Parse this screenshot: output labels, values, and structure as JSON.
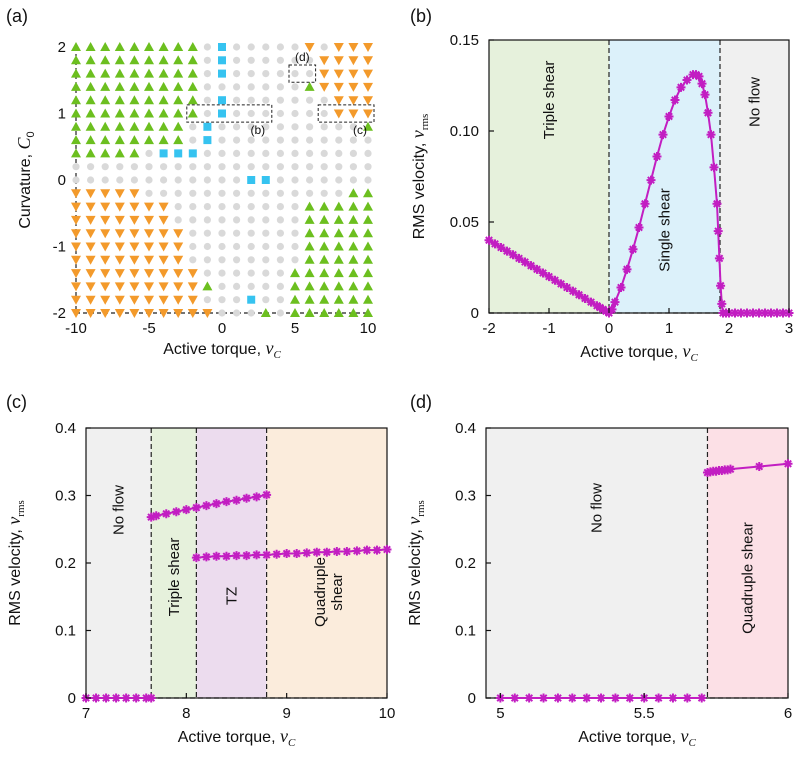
{
  "colors": {
    "green": "#6cbf1f",
    "orange": "#f39a2b",
    "cyan": "#36c3f0",
    "grey": "#d9d9d9",
    "magenta": "#c21ec2",
    "region_triple": "#e6f1dc",
    "region_single": "#dcf1fa",
    "region_noflow": "#f0f0f0",
    "region_tz": "#ecdcee",
    "region_quad_c": "#fbecdc",
    "region_quad_d": "#fce0e6"
  },
  "panel_labels": {
    "a": "(a)",
    "b": "(b)",
    "c": "(c)",
    "d": "(d)"
  },
  "icons": {
    "green": "triangle-up-icon",
    "orange": "triangle-down-icon",
    "cyan": "square-icon",
    "grey": "circle-icon"
  },
  "chart_data": [
    {
      "id": "a",
      "type": "scatter",
      "xlabel": "Active torque, ν_C",
      "ylabel": "Curvature, C₀",
      "xlim": [
        -10,
        10
      ],
      "ylim": [
        -2,
        2
      ],
      "xticks": [
        "-10",
        "-5",
        "0",
        "5",
        "10"
      ],
      "yticks": [
        "-2",
        "-1",
        "0",
        "1",
        "2"
      ],
      "grid": {
        "nx": 21,
        "ny": 21,
        "x0": -10,
        "dx": 1,
        "y0": -2,
        "dy": 0.2
      },
      "categories": [
        "green triangle-up",
        "orange triangle-down",
        "cyan square",
        "grey circle"
      ],
      "grid_rows_top_to_bottom": [
        "GGGGGGGGG.C.....O.OOO",
        "GGGGGGGGG.C......OOOO",
        "GGGGGGGGG.C......OOOO",
        "GGGGGGGGG.......GOOOO",
        "GGGGGGGGG.C.......OOO",
        "GGGGGGGGG.C.......OOO",
        "GGGGGGGG.C..........G",
        "GGGGGGGG.C...........",
        "GGGGG.CCC............",
        ".....................",
        "............CC.......",
        "OOOOO..............GG",
        "OOOOOOO.........GGGGG",
        "OOOOOOO.........GGGGG",
        "OOOOOOOO........GGGGG",
        "OOOOOOOO........GGGGG",
        "OOOOOOOO........GGGGG",
        "OOOOOOOOO......GGGGGG",
        "OOOOOOOOOG.....GGGGGG",
        "OOOOOOOOO...C..GGGGGG",
        "OOOOOOOOOO...G.GGGGGG"
      ],
      "insets": [
        {
          "label": "(b)",
          "x": [
            -2,
            3
          ],
          "y": [
            0.9,
            1.1
          ]
        },
        {
          "label": "(c)",
          "x": [
            7,
            10
          ],
          "y": [
            0.9,
            1.1
          ]
        },
        {
          "label": "(d)",
          "x": [
            5,
            6
          ],
          "y": [
            1.5,
            1.7
          ]
        }
      ]
    },
    {
      "id": "b",
      "type": "line",
      "xlabel": "Active torque, ν_C",
      "ylabel": "RMS velocity, v_rms",
      "xlim": [
        -2,
        3
      ],
      "ylim": [
        0,
        0.15
      ],
      "xticks": [
        "-2",
        "-1",
        "0",
        "1",
        "2",
        "3"
      ],
      "yticks": [
        "0",
        "0.05",
        "0.10",
        "0.15"
      ],
      "regions": [
        {
          "label": "Triple shear",
          "from": -2,
          "to": 0,
          "color": "region_triple"
        },
        {
          "label": "Single shear",
          "from": 0,
          "to": 1.85,
          "color": "region_single"
        },
        {
          "label": "No flow",
          "from": 1.85,
          "to": 3,
          "color": "region_noflow"
        }
      ],
      "series": [
        {
          "x": [
            -2,
            -1.9,
            -1.8,
            -1.7,
            -1.6,
            -1.5,
            -1.4,
            -1.3,
            -1.2,
            -1.1,
            -1.0,
            -0.9,
            -0.8,
            -0.7,
            -0.6,
            -0.5,
            -0.4,
            -0.3,
            -0.2,
            -0.15,
            -0.1,
            -0.05,
            0,
            0.05,
            0.1,
            0.2,
            0.3,
            0.4,
            0.5,
            0.6,
            0.7,
            0.8,
            0.9,
            1.0,
            1.1,
            1.2,
            1.3,
            1.4,
            1.45,
            1.5,
            1.55,
            1.6,
            1.65,
            1.7,
            1.75,
            1.8,
            1.82,
            1.84,
            1.86,
            1.88,
            1.9,
            1.95,
            2.0,
            2.1,
            2.2,
            2.3,
            2.4,
            2.5,
            2.6,
            2.7,
            2.8,
            2.9,
            3.0
          ],
          "y": [
            0.04,
            0.038,
            0.036,
            0.034,
            0.032,
            0.03,
            0.028,
            0.026,
            0.024,
            0.022,
            0.02,
            0.018,
            0.016,
            0.014,
            0.012,
            0.01,
            0.008,
            0.006,
            0.004,
            0.003,
            0.002,
            0.001,
            0,
            0.002,
            0.006,
            0.014,
            0.024,
            0.035,
            0.047,
            0.06,
            0.073,
            0.086,
            0.098,
            0.108,
            0.117,
            0.124,
            0.128,
            0.131,
            0.131,
            0.13,
            0.126,
            0.12,
            0.11,
            0.098,
            0.08,
            0.06,
            0.045,
            0.03,
            0.015,
            0.005,
            0,
            0,
            0,
            0,
            0,
            0,
            0,
            0,
            0,
            0,
            0,
            0,
            0
          ]
        }
      ]
    },
    {
      "id": "c",
      "type": "line",
      "xlabel": "Active torque, ν_C",
      "ylabel": "RMS velocity, v_rms",
      "xlim": [
        7,
        10
      ],
      "ylim": [
        0,
        0.4
      ],
      "xticks": [
        "7",
        "8",
        "9",
        "10"
      ],
      "yticks": [
        "0",
        "0.1",
        "0.2",
        "0.3",
        "0.4"
      ],
      "regions": [
        {
          "label": "No flow",
          "from": 7,
          "to": 7.65,
          "color": "region_noflow"
        },
        {
          "label": "Triple shear",
          "from": 7.65,
          "to": 8.1,
          "color": "region_triple"
        },
        {
          "label": "TZ",
          "from": 8.1,
          "to": 8.8,
          "color": "region_tz"
        },
        {
          "label": "Quadruple shear",
          "from": 8.8,
          "to": 10,
          "color": "region_quad_c"
        }
      ],
      "series": [
        {
          "x": [
            7.0,
            7.1,
            7.2,
            7.3,
            7.4,
            7.5,
            7.6,
            7.65
          ],
          "y": [
            0,
            0,
            0,
            0,
            0,
            0,
            0,
            0
          ]
        },
        {
          "x": [
            7.65,
            7.7,
            7.8,
            7.9,
            8.0,
            8.1,
            8.2,
            8.3,
            8.4,
            8.5,
            8.6,
            8.7,
            8.8
          ],
          "y": [
            0.268,
            0.27,
            0.273,
            0.276,
            0.279,
            0.282,
            0.285,
            0.288,
            0.291,
            0.293,
            0.296,
            0.298,
            0.301
          ]
        },
        {
          "x": [
            8.1,
            8.2,
            8.3,
            8.4,
            8.5,
            8.6,
            8.7,
            8.8,
            8.9,
            9.0,
            9.1,
            9.2,
            9.3,
            9.4,
            9.5,
            9.6,
            9.7,
            9.8,
            9.9,
            10.0
          ],
          "y": [
            0.208,
            0.209,
            0.21,
            0.21,
            0.211,
            0.211,
            0.212,
            0.212,
            0.213,
            0.214,
            0.214,
            0.215,
            0.216,
            0.216,
            0.217,
            0.217,
            0.218,
            0.219,
            0.219,
            0.22
          ]
        }
      ]
    },
    {
      "id": "d",
      "type": "line",
      "xlabel": "Active torque, ν_C",
      "ylabel": "RMS velocity, v_rms",
      "xlim": [
        4.95,
        6.0
      ],
      "ylim": [
        0,
        0.4
      ],
      "xticks": [
        "5",
        "5.5",
        "6"
      ],
      "yticks": [
        "0",
        "0.1",
        "0.2",
        "0.3",
        "0.4"
      ],
      "regions": [
        {
          "label": "No flow",
          "from": 4.95,
          "to": 5.72,
          "color": "region_noflow"
        },
        {
          "label": "Quadruple shear",
          "from": 5.72,
          "to": 6.0,
          "color": "region_quad_d"
        }
      ],
      "series": [
        {
          "x": [
            5.0,
            5.05,
            5.1,
            5.15,
            5.2,
            5.25,
            5.3,
            5.35,
            5.4,
            5.45,
            5.5,
            5.55,
            5.6,
            5.65,
            5.7
          ],
          "y": [
            0,
            0,
            0,
            0,
            0,
            0,
            0,
            0,
            0,
            0,
            0,
            0,
            0,
            0,
            0
          ]
        },
        {
          "x": [
            5.72,
            5.73,
            5.74,
            5.75,
            5.76,
            5.77,
            5.78,
            5.79,
            5.8,
            5.9,
            6.0
          ],
          "y": [
            0.334,
            0.335,
            0.336,
            0.336,
            0.337,
            0.337,
            0.338,
            0.338,
            0.339,
            0.343,
            0.347
          ]
        }
      ]
    }
  ]
}
